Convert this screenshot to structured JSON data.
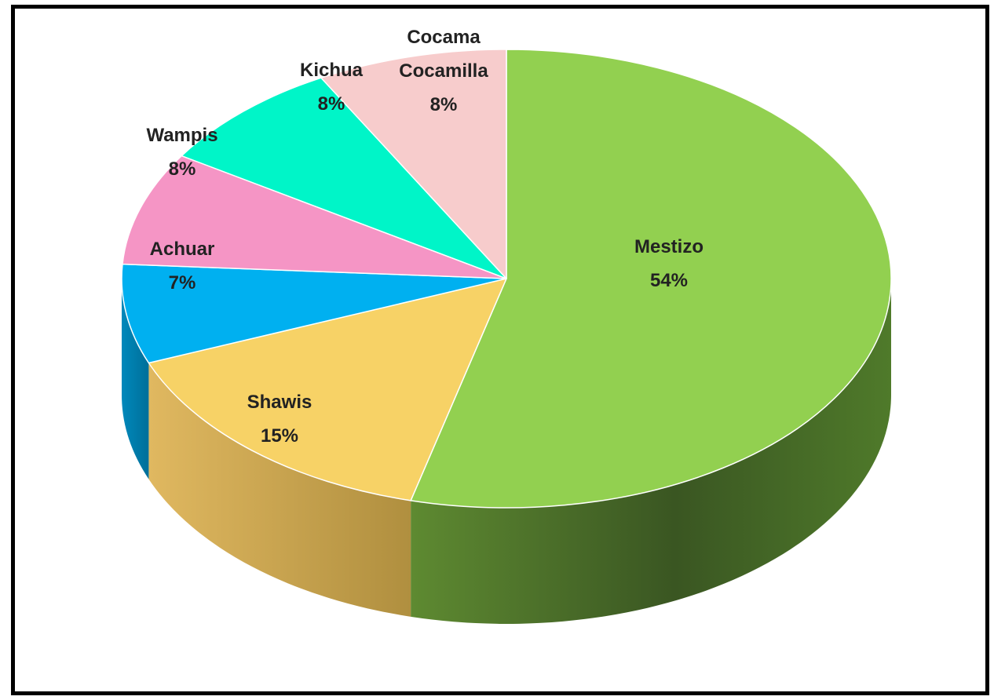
{
  "chart_data": {
    "type": "pie",
    "title": "",
    "style": "3d",
    "slices": [
      {
        "name": "Mestizo",
        "value": 54,
        "label": "54%",
        "color": "#92d050"
      },
      {
        "name": "Shawis",
        "value": 15,
        "label": "15%",
        "color": "#f7d266"
      },
      {
        "name": "Achuar",
        "value": 7,
        "label": "7%",
        "color": "#00b0f0"
      },
      {
        "name": "Wampis",
        "value": 8,
        "label": "8%",
        "color": "#f595c5"
      },
      {
        "name": "Kichua",
        "value": 8,
        "label": "8%",
        "color": "#00f5c8"
      },
      {
        "name": "Cocama\nCocamilla",
        "value": 8,
        "label": "8%",
        "color": "#f7cccc"
      }
    ]
  }
}
